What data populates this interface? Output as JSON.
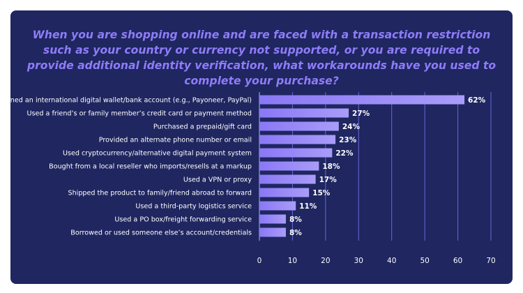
{
  "chart_data": {
    "type": "bar",
    "orientation": "horizontal",
    "title": "When you are shopping online and are faced with a transaction restriction such as your country or currency not supported, or you are required to provide additional identity verification, what workarounds have you used to complete your purchase?",
    "categories": [
      "Opened an international digital wallet/bank account (e.g., Payoneer, PayPal)",
      "Used a friend’s or family member’s credit card or payment method",
      "Purchased a prepaid/gift card",
      "Provided an alternate phone number or email",
      "Used cryptocurrency/alternative digital payment system",
      "Bought from a local reseller who imports/resells at a markup",
      "Used a VPN or proxy",
      "Shipped the product to family/friend abroad to forward",
      "Used a third-party logistics service",
      "Used a PO box/freight forwarding service",
      "Borrowed or used someone else’s account/credentials"
    ],
    "values": [
      62,
      27,
      24,
      23,
      22,
      18,
      17,
      15,
      11,
      8,
      8
    ],
    "value_labels": [
      "62%",
      "27%",
      "24%",
      "23%",
      "22%",
      "18%",
      "17%",
      "15%",
      "11%",
      "8%",
      "8%"
    ],
    "xlim": [
      0,
      70
    ],
    "xticks": [
      0,
      10,
      20,
      30,
      40,
      50,
      60,
      70
    ],
    "xlabel": "",
    "ylabel": "",
    "grid": true,
    "legend": "none",
    "colors": {
      "card_background": "#1f2660",
      "title": "#8e7cf7",
      "bar_start": "#8a78f5",
      "bar_end": "#a99cf9",
      "gridline": "#6d66d6",
      "text": "#ffffff"
    }
  }
}
